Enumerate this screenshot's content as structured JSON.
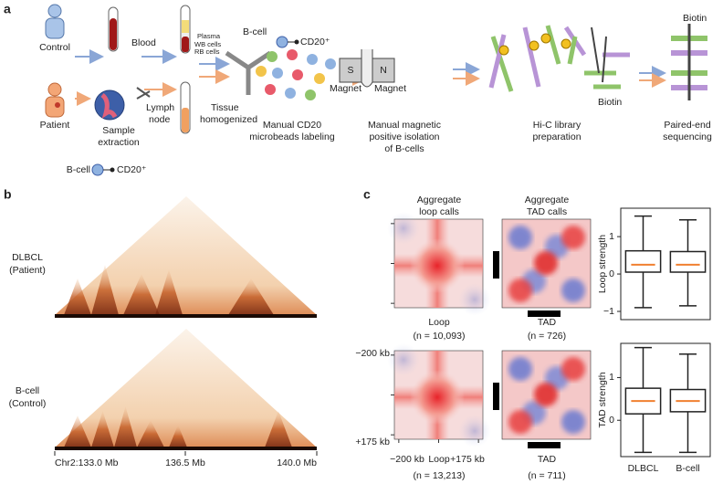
{
  "panel_a": {
    "label": "a",
    "control": "Control",
    "blood": "Blood",
    "plasma": "Plasma",
    "wb_cells": "WB cells",
    "rb_cells": "RB cells",
    "patient": "Patient",
    "lymph_node": [
      "Lymph",
      "node"
    ],
    "sample_extraction": [
      "Sample",
      "extraction"
    ],
    "tissue_homogenized": [
      "Tissue",
      "homogenized"
    ],
    "legend_bcell": "B-cell",
    "legend_cd20": "CD20⁺",
    "labeling_bcell": "B-cell",
    "labeling_cd20": "CD20⁺",
    "step_labeling": [
      "Manual CD20",
      "microbeads labeling"
    ],
    "magnet_s": "S",
    "magnet_n": "N",
    "magnet_left": "Magnet",
    "magnet_right": "Magnet",
    "step_isolation": [
      "Manual magnetic",
      "positive isolation",
      "of B-cells"
    ],
    "step_hic": [
      "Hi-C library",
      "preparation"
    ],
    "biotin_hic": "Biotin",
    "biotin_seq": "Biotin",
    "step_sequencing": [
      "Paired-end",
      "sequencing"
    ]
  },
  "panel_b": {
    "label": "b",
    "tracks": [
      [
        "DLBCL",
        "(Patient)"
      ],
      [
        "B-cell",
        "(Control)"
      ]
    ],
    "axis_labels": [
      "Chr2:133.0 Mb",
      "136.5 Mb",
      "140.0 Mb"
    ]
  },
  "panel_c": {
    "label": "c",
    "loop_title": [
      "Aggregate",
      "loop calls"
    ],
    "tad_title": [
      "Aggregate",
      "TAD calls"
    ],
    "rows": [
      {
        "loop": "Loop",
        "loop_n": "(n = 10,093)",
        "tad": "TAD",
        "tad_n": "(n = 726)"
      },
      {
        "loop": "Loop",
        "loop_n": "(n = 13,213)",
        "tad": "TAD",
        "tad_n": "(n = 711)"
      }
    ],
    "y_axis": [
      "−200 kb",
      "+175 kb"
    ],
    "x_axis": [
      "−200 kb",
      "Loop",
      "+175 kb"
    ]
  },
  "chart_data": [
    {
      "type": "box",
      "ylabel": "Loop strength",
      "ylim": [
        -1.22,
        1.76
      ],
      "yticks": [
        {
          "value": -1,
          "label": "−1"
        },
        0,
        1
      ],
      "median_color": "#f08030",
      "boxes": [
        {
          "whislo": -0.9,
          "q1": 0.05,
          "med": 0.25,
          "q3": 0.62,
          "whishi": 1.55
        },
        {
          "whislo": -0.85,
          "q1": 0.05,
          "med": 0.25,
          "q3": 0.6,
          "whishi": 1.45
        }
      ]
    },
    {
      "type": "box",
      "ylabel": "TAD strength",
      "ylim": [
        -0.85,
        1.8
      ],
      "yticks": [
        0,
        1
      ],
      "median_color": "#f08030",
      "categories": [
        "DLBCL",
        "B-cell"
      ],
      "boxes": [
        {
          "whislo": -0.75,
          "q1": 0.15,
          "med": 0.45,
          "q3": 0.75,
          "whishi": 1.7
        },
        {
          "whislo": -0.75,
          "q1": 0.2,
          "med": 0.45,
          "q3": 0.72,
          "whishi": 1.55
        }
      ]
    }
  ]
}
